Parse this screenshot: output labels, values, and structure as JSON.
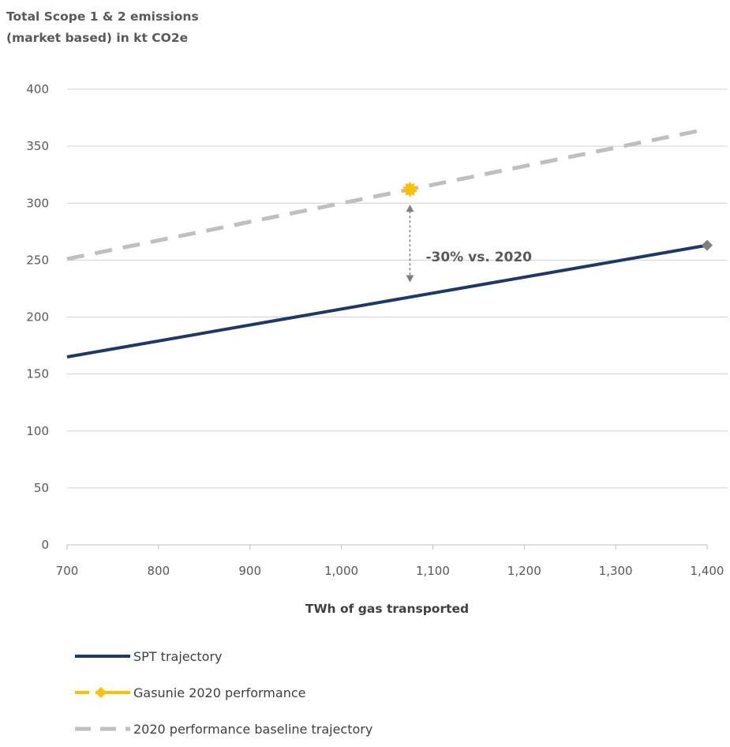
{
  "chart_data": {
    "type": "line",
    "title_line1": "Total Scope 1 & 2 emissions",
    "title_line2": "(market based) in  kt CO2e",
    "xlabel": "TWh of gas transported",
    "ylabel": "",
    "xlim": [
      700,
      1400
    ],
    "ylim": [
      0,
      400
    ],
    "x_ticks": [
      700,
      800,
      900,
      1000,
      1100,
      1200,
      1300,
      1400
    ],
    "x_tick_labels": [
      "700",
      "800",
      "900",
      "1,000",
      "1,100",
      "1,200",
      "1,300",
      "1,400"
    ],
    "y_ticks": [
      0,
      50,
      100,
      150,
      200,
      250,
      300,
      350,
      400
    ],
    "y_tick_labels": [
      "0",
      "50",
      "100",
      "150",
      "200",
      "250",
      "300",
      "350",
      "400"
    ],
    "grid": "horizontal",
    "legend_position": "bottom",
    "series": [
      {
        "name": "SPT trajectory",
        "style": "solid",
        "color": "#1f3864",
        "x": [
          700,
          1400
        ],
        "y": [
          165,
          263
        ]
      },
      {
        "name": "Gasunie 2020 performance",
        "style": "marker",
        "color": "#ffc000",
        "x": [
          1075
        ],
        "y": [
          312
        ]
      },
      {
        "name": "2020 performance baseline trajectory",
        "style": "dashed",
        "color": "#bfbfbf",
        "x": [
          700,
          1400
        ],
        "y": [
          251,
          365
        ]
      }
    ],
    "annotation": {
      "text": "-30% vs.  2020",
      "x": 1075,
      "y_from": 300,
      "y_to": 225
    }
  }
}
